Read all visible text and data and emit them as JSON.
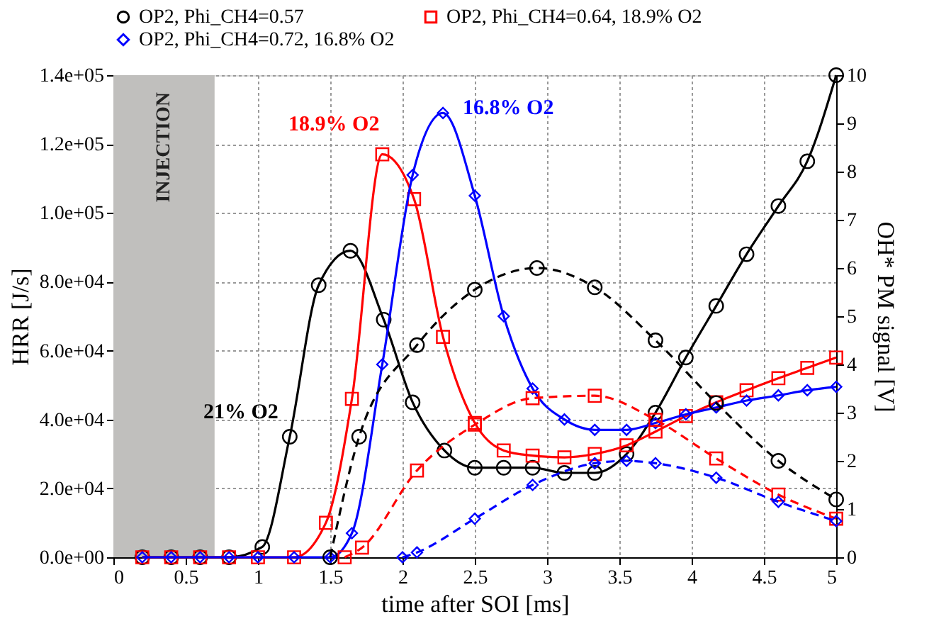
{
  "chart_data": {
    "type": "line",
    "xlabel": "time after SOI [ms]",
    "ylabel": "HRR [J/s]",
    "y2label": "OH* PM signal [V]",
    "xlim": [
      0,
      5
    ],
    "xticks": [
      0,
      0.5,
      1,
      1.5,
      2,
      2.5,
      3,
      3.5,
      4,
      4.5,
      5
    ],
    "ylim": [
      0,
      140000
    ],
    "yticks": [
      {
        "value": 0,
        "label": "0.0e+00"
      },
      {
        "value": 20000,
        "label": "2.0e+04"
      },
      {
        "value": 40000,
        "label": "4.0e+04"
      },
      {
        "value": 60000,
        "label": "6.0e+04"
      },
      {
        "value": 80000,
        "label": "8.0e+04"
      },
      {
        "value": 100000,
        "label": "1.0e+05"
      },
      {
        "value": 120000,
        "label": "1.2e+05"
      },
      {
        "value": 140000,
        "label": "1.4e+05"
      }
    ],
    "y2lim": [
      0,
      10
    ],
    "y2ticks": [
      0,
      1,
      2,
      3,
      4,
      5,
      6,
      7,
      8,
      9,
      10
    ],
    "grid": true,
    "legend": "top left",
    "series": [
      {
        "name": "OP2, Phi_CH4=0.57",
        "color": "#000000",
        "marker": "circle",
        "line_style": "solid",
        "x": [
          0.2,
          0.4,
          0.6,
          0.8,
          1.03,
          1.22,
          1.42,
          1.64,
          1.87,
          2.07,
          2.29,
          2.5,
          2.7,
          2.9,
          3.12,
          3.33,
          3.55,
          3.75,
          3.96,
          4.17,
          4.38,
          4.6,
          4.8,
          5.0
        ],
        "values": [
          0,
          0,
          0,
          0,
          3000,
          35000,
          79000,
          89000,
          69000,
          45000,
          31000,
          26000,
          26000,
          26000,
          24500,
          24500,
          30000,
          42000,
          58000,
          73000,
          88000,
          102000,
          115000,
          140000
        ]
      },
      {
        "name": "OP2, Phi_CH4=0.64, 18.9% O2",
        "color": "#ff0000",
        "marker": "square",
        "line_style": "solid",
        "x": [
          0.2,
          0.4,
          0.6,
          0.8,
          1.0,
          1.25,
          1.47,
          1.65,
          1.86,
          2.08,
          2.28,
          2.5,
          2.7,
          2.9,
          3.12,
          3.33,
          3.55,
          3.75,
          3.96,
          4.17,
          4.38,
          4.6,
          4.8,
          5.0
        ],
        "values": [
          0,
          0,
          0,
          0,
          0,
          0,
          10000,
          46000,
          117000,
          104000,
          64000,
          39000,
          31000,
          29500,
          29000,
          30000,
          32500,
          36500,
          41000,
          45000,
          48500,
          52000,
          55000,
          58000
        ]
      },
      {
        "name": "OP2, Phi_CH4=0.72, 16.8% O2",
        "color": "#0000ff",
        "marker": "diamond",
        "line_style": "solid",
        "x": [
          0.2,
          0.4,
          0.6,
          0.8,
          1.0,
          1.25,
          1.5,
          1.65,
          1.86,
          2.07,
          2.28,
          2.5,
          2.7,
          2.9,
          3.12,
          3.33,
          3.55,
          3.75,
          3.96,
          4.17,
          4.38,
          4.6,
          4.8,
          5.0
        ],
        "values": [
          0,
          0,
          0,
          0,
          0,
          0,
          0,
          7000,
          56000,
          111000,
          129000,
          105000,
          70000,
          49000,
          40000,
          37000,
          37000,
          39000,
          41500,
          43500,
          45500,
          47000,
          48500,
          49500
        ]
      },
      {
        "color": "#000000",
        "marker": "circle",
        "line_style": "dashed",
        "axis": "y2",
        "x": [
          1.5,
          1.7,
          2.1,
          2.5,
          2.93,
          3.33,
          3.75,
          4.17,
          4.6,
          5.0
        ],
        "values": [
          0,
          2.5,
          4.4,
          5.55,
          6.0,
          5.6,
          4.5,
          3.2,
          2.0,
          1.2
        ]
      },
      {
        "color": "#ff0000",
        "marker": "square",
        "line_style": "dashed",
        "axis": "y2",
        "x": [
          1.6,
          1.72,
          2.1,
          2.5,
          2.9,
          3.33,
          3.75,
          4.17,
          4.6,
          5.0
        ],
        "values": [
          0,
          0.2,
          1.8,
          2.75,
          3.3,
          3.35,
          2.85,
          2.05,
          1.3,
          0.8
        ]
      },
      {
        "color": "#0000ff",
        "marker": "diamond",
        "line_style": "dashed",
        "axis": "y2",
        "x": [
          2.0,
          2.1,
          2.5,
          2.9,
          3.33,
          3.55,
          3.75,
          4.17,
          4.6,
          5.0
        ],
        "values": [
          0,
          0.1,
          0.8,
          1.5,
          1.95,
          2.0,
          1.95,
          1.65,
          1.15,
          0.75
        ]
      }
    ],
    "bands": [
      {
        "axis": "x",
        "from": 0,
        "to": 0.7,
        "label": "INJECTION",
        "color": "#c0bfbd"
      }
    ],
    "annotations": [
      "21% O2",
      "18.9% O2",
      "16.8% O2"
    ]
  }
}
